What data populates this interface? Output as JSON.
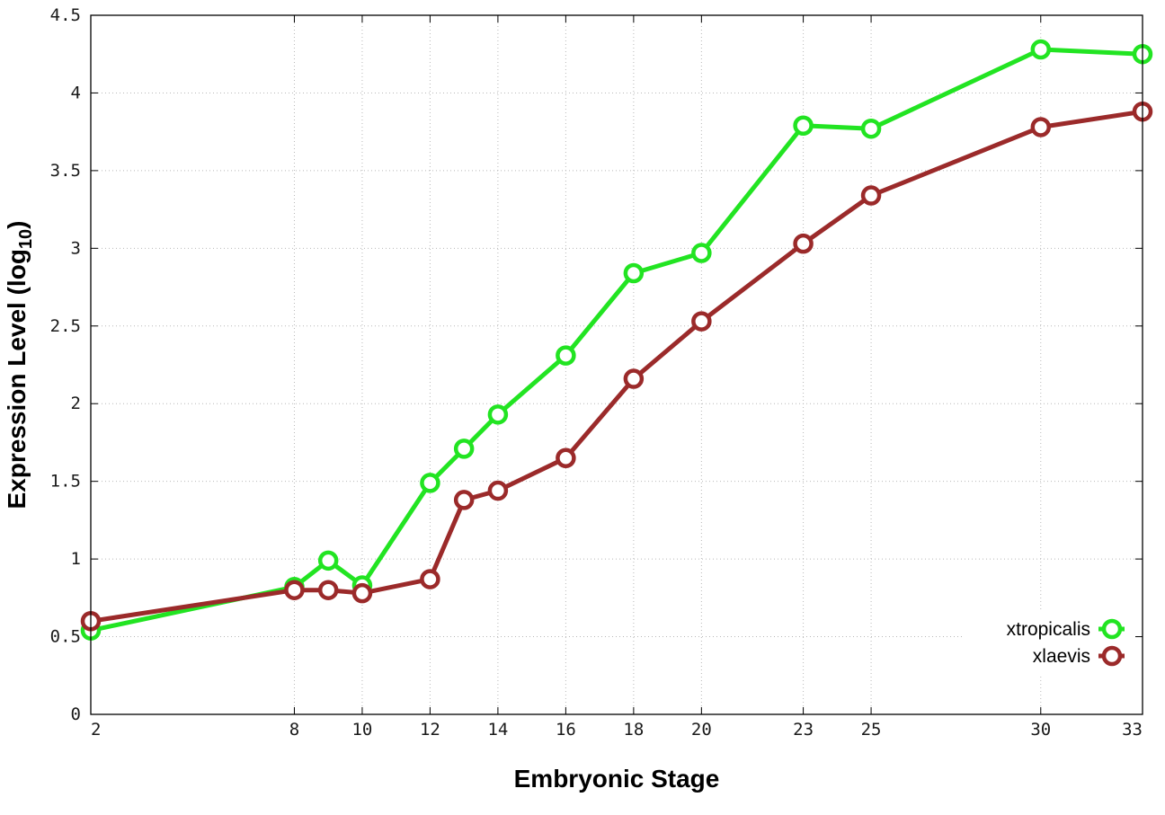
{
  "chart_data": {
    "type": "line",
    "title": "",
    "xlabel": "Embryonic Stage",
    "ylabel_main": "Expression Level (log",
    "ylabel_sub": "10",
    "ylabel_close": ")",
    "x": [
      2,
      8,
      9,
      10,
      12,
      13,
      14,
      16,
      18,
      20,
      23,
      25,
      30,
      33
    ],
    "x_ticks": [
      {
        "value": 2,
        "label": "2"
      },
      {
        "value": 8,
        "label": "8"
      },
      {
        "value": 10,
        "label": "10"
      },
      {
        "value": 12,
        "label": "12"
      },
      {
        "value": 14,
        "label": "14"
      },
      {
        "value": 16,
        "label": "16"
      },
      {
        "value": 18,
        "label": "18"
      },
      {
        "value": 20,
        "label": "20"
      },
      {
        "value": 23,
        "label": "23"
      },
      {
        "value": 25,
        "label": "25"
      },
      {
        "value": 30,
        "label": "30"
      },
      {
        "value": 33,
        "label": "33"
      }
    ],
    "y_ticks": [
      {
        "value": 0,
        "label": "0"
      },
      {
        "value": 0.5,
        "label": "0.5"
      },
      {
        "value": 1,
        "label": "1"
      },
      {
        "value": 1.5,
        "label": "1.5"
      },
      {
        "value": 2,
        "label": "2"
      },
      {
        "value": 2.5,
        "label": "2.5"
      },
      {
        "value": 3,
        "label": "3"
      },
      {
        "value": 3.5,
        "label": "3.5"
      },
      {
        "value": 4,
        "label": "4"
      },
      {
        "value": 4.5,
        "label": "4.5"
      }
    ],
    "xlim": [
      2,
      33
    ],
    "ylim": [
      0,
      4.5
    ],
    "grid": true,
    "legend_position": "bottom-right",
    "series": [
      {
        "name": "xtropicalis",
        "color": "#22e422",
        "values": [
          0.54,
          0.82,
          0.99,
          0.83,
          1.49,
          1.71,
          1.93,
          2.31,
          2.84,
          2.97,
          3.79,
          3.77,
          4.28,
          4.25
        ]
      },
      {
        "name": "xlaevis",
        "color": "#9b2a2a",
        "values": [
          0.6,
          0.8,
          0.8,
          0.78,
          0.87,
          1.38,
          1.44,
          1.65,
          2.16,
          2.53,
          3.03,
          3.34,
          3.78,
          3.88
        ]
      }
    ]
  }
}
